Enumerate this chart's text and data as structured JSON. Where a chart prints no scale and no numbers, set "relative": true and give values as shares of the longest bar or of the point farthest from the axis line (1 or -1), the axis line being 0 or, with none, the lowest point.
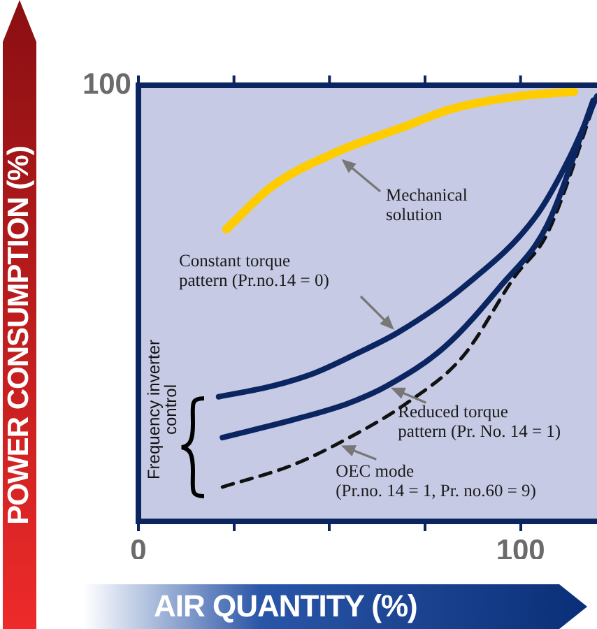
{
  "chart_data": {
    "type": "line",
    "xlabel": "AIR QUANTITY (%)",
    "ylabel": "POWER CONSUMPTION (%)",
    "xlim": [
      0,
      120
    ],
    "relative": true,
    "xticks": [
      0,
      {
        "value": 25,
        "label": null
      },
      {
        "value": 50,
        "label": null
      },
      {
        "value": 75,
        "label": null
      },
      100
    ],
    "marker": "none",
    "series": [
      {
        "color": "#ffcc00",
        "line_style": "solid",
        "x": [
          23,
          35,
          52,
          70,
          82,
          100,
          114
        ],
        "values": [
          0.68,
          0.78,
          0.86,
          0.92,
          0.96,
          0.99,
          1
        ]
      },
      {
        "color": "#0b2560",
        "line_style": "solid",
        "x": [
          21,
          35,
          46,
          57,
          68,
          85,
          104,
          113,
          120
        ],
        "values": [
          0.29,
          0.315,
          0.345,
          0.39,
          0.44,
          0.545,
          0.71,
          0.85,
          0.99
        ]
      },
      {
        "color": "#0b2560",
        "line_style": "solid",
        "x": [
          22,
          42,
          55,
          65,
          80,
          95,
          107,
          119
        ],
        "values": [
          0.195,
          0.24,
          0.275,
          0.315,
          0.405,
          0.55,
          0.69,
          0.98
        ]
      },
      {
        "color": "#111111",
        "line_style": "dashed",
        "x": [
          22,
          40,
          52,
          71,
          85,
          98.5,
          107,
          120
        ],
        "values": [
          0.08,
          0.13,
          0.18,
          0.28,
          0.385,
          0.57,
          0.67,
          0.99
        ]
      }
    ],
    "annotations": [
      "Mechanical solution",
      "Constant torque pattern (Pr.no.14 = 0)",
      {
        "text": "Reduced torque pattern (Pr. No. 14 = 1)",
        "x": 65,
        "y": 0.315
      },
      {
        "text": "OEC mode (Pr.no. 14 = 1, Pr. no.60 = 9)",
        "x": 52,
        "y": 0.18
      },
      "Frequency inverter control",
      "100"
    ]
  }
}
